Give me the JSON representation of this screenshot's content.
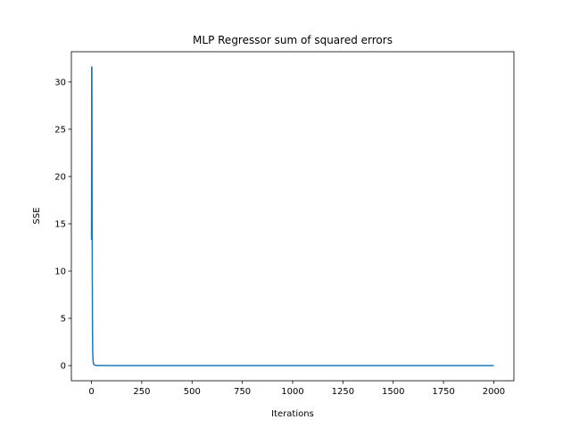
{
  "chart_data": {
    "type": "line",
    "title": "MLP Regressor sum of squared errors",
    "xlabel": "Iterations",
    "ylabel": "SSE",
    "xlim": [
      -100,
      2100
    ],
    "ylim": [
      -1.6,
      33.2
    ],
    "xticks": [
      0,
      250,
      500,
      750,
      1000,
      1250,
      1500,
      1750,
      2000
    ],
    "yticks": [
      0,
      5,
      10,
      15,
      20,
      25,
      30
    ],
    "grid": false,
    "series": [
      {
        "color": "#1f77b4",
        "points": [
          [
            0,
            13.3
          ],
          [
            0.5,
            17.4
          ],
          [
            1,
            31.6
          ],
          [
            2,
            31.5
          ],
          [
            3,
            20.0
          ],
          [
            4,
            10.0
          ],
          [
            5,
            4.0
          ],
          [
            6,
            1.5
          ],
          [
            8,
            0.5
          ],
          [
            10,
            0.2
          ],
          [
            15,
            0.05
          ],
          [
            25,
            0.02
          ],
          [
            50,
            0.01
          ],
          [
            100,
            0.0
          ],
          [
            500,
            0.0
          ],
          [
            1000,
            0.0
          ],
          [
            1500,
            0.0
          ],
          [
            2000,
            0.0
          ]
        ]
      }
    ]
  }
}
